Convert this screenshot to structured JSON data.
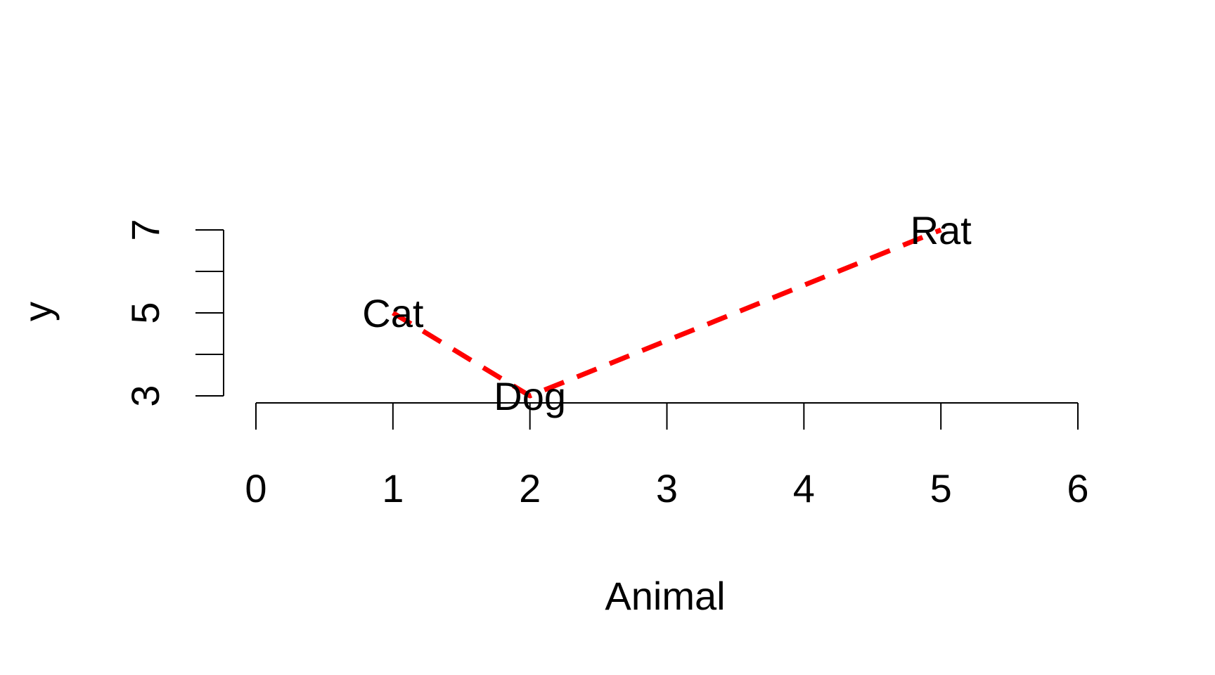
{
  "chart_data": {
    "type": "line",
    "title": "",
    "xlabel": "Animal",
    "ylabel": "y",
    "xlim": [
      0,
      6
    ],
    "ylim": [
      3,
      7
    ],
    "x_ticks": [
      0,
      1,
      2,
      3,
      4,
      5,
      6
    ],
    "y_ticks_labeled": [
      3,
      5,
      7
    ],
    "y_ticks": [
      3,
      4,
      5,
      6,
      7
    ],
    "x_tick_labels": [
      "0",
      "1",
      "2",
      "3",
      "4",
      "5",
      "6"
    ],
    "y_tick_labels": [
      "3",
      "5",
      "7"
    ],
    "series": [
      {
        "name": "y",
        "x": [
          1,
          2,
          5
        ],
        "values": [
          5,
          3,
          7
        ],
        "labels": [
          "Cat",
          "Dog",
          "Rat"
        ],
        "color": "#ff0000",
        "line_style": "dashed"
      }
    ]
  }
}
